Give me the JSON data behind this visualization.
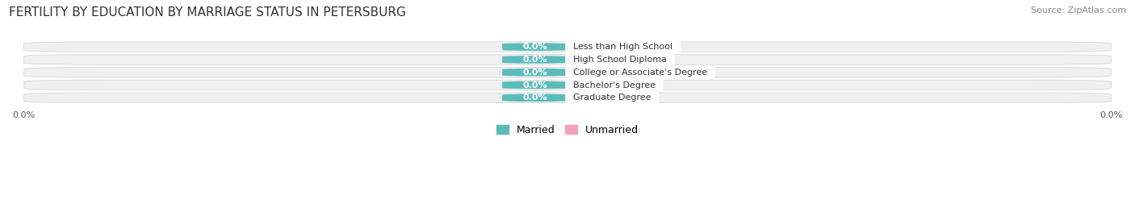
{
  "title": "FERTILITY BY EDUCATION BY MARRIAGE STATUS IN PETERSBURG",
  "source": "Source: ZipAtlas.com",
  "categories": [
    "Less than High School",
    "High School Diploma",
    "College or Associate's Degree",
    "Bachelor's Degree",
    "Graduate Degree"
  ],
  "married_values": [
    0.0,
    0.0,
    0.0,
    0.0,
    0.0
  ],
  "unmarried_values": [
    0.0,
    0.0,
    0.0,
    0.0,
    0.0
  ],
  "married_color": "#5bbcbb",
  "unmarried_color": "#f4a0b5",
  "row_bg_color": "#f0f0f0",
  "title_fontsize": 11,
  "source_fontsize": 8,
  "label_fontsize": 8,
  "tick_fontsize": 8,
  "legend_fontsize": 9,
  "figsize": [
    14.06,
    2.68
  ],
  "dpi": 100
}
